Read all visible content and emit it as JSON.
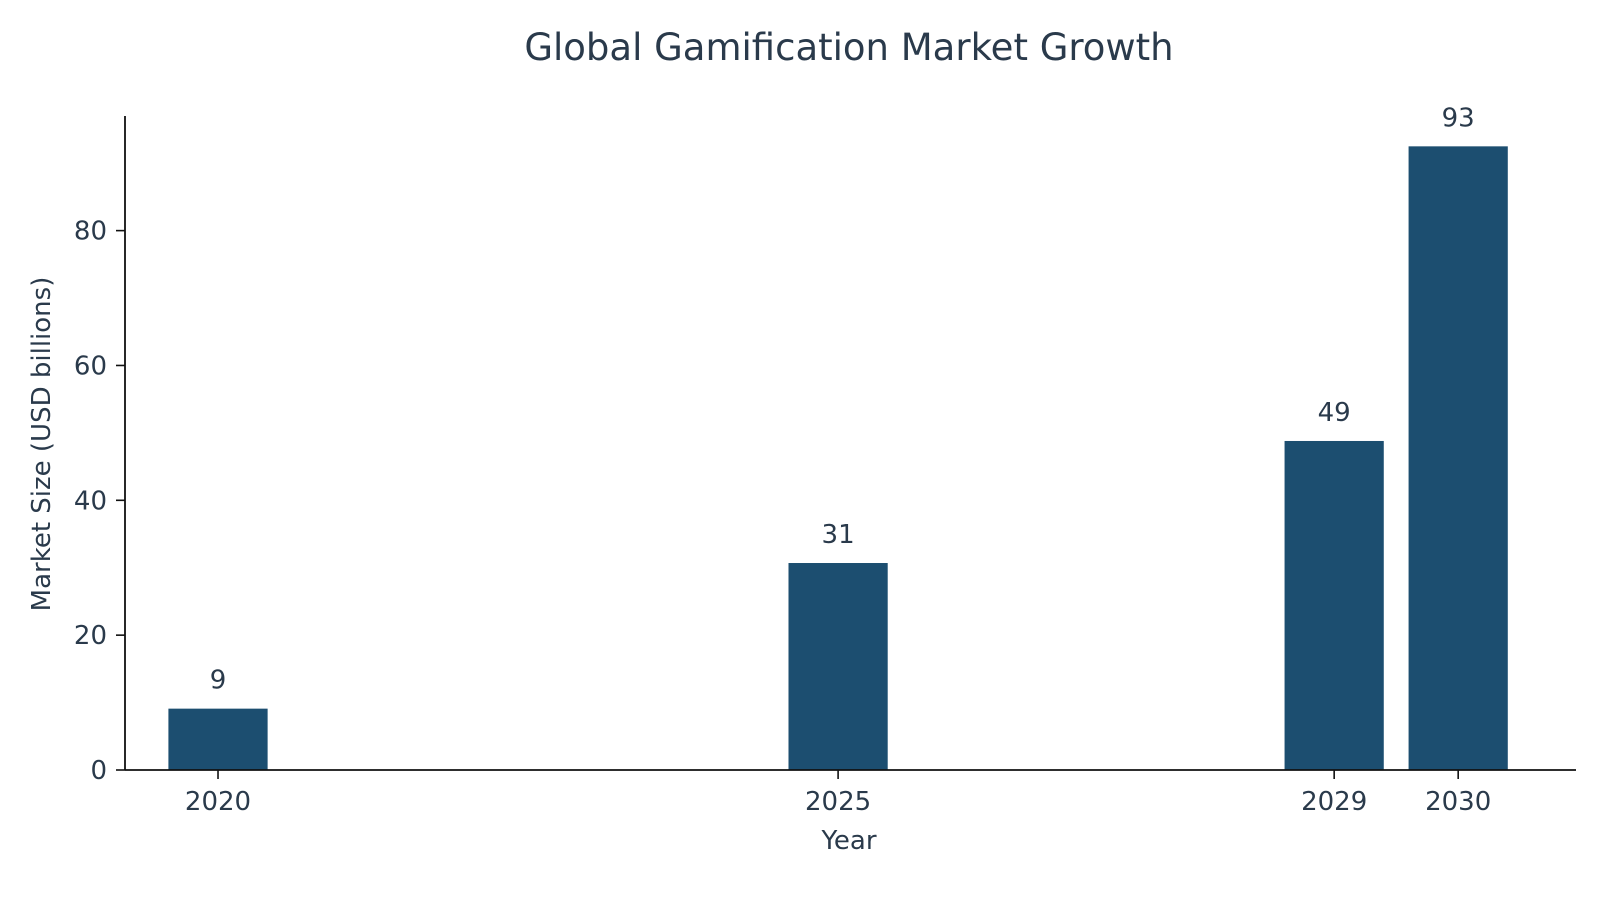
{
  "chart_data": {
    "type": "bar",
    "title": "Global Gamification Market Growth",
    "xlabel": "Year",
    "ylabel": "Market Size (USD billions)",
    "categories": [
      "2020",
      "2025",
      "2029",
      "2030"
    ],
    "x": [
      2020,
      2025,
      2029,
      2030
    ],
    "values": [
      9.1,
      30.7,
      48.8,
      92.5
    ],
    "data_labels": [
      "9",
      "31",
      "49",
      "93"
    ],
    "ylim": [
      0,
      97
    ],
    "xlim": [
      2019.25,
      2030.95
    ],
    "yticks": [
      0,
      20,
      40,
      60,
      80
    ],
    "ytick_labels": [
      "0",
      "20",
      "40",
      "60",
      "80"
    ],
    "bar_width_years": 0.8,
    "grid": false,
    "legend": "none",
    "bar_color": "#1c4e70",
    "axis_color": "#111111",
    "text_color": "#2a3a4b"
  }
}
